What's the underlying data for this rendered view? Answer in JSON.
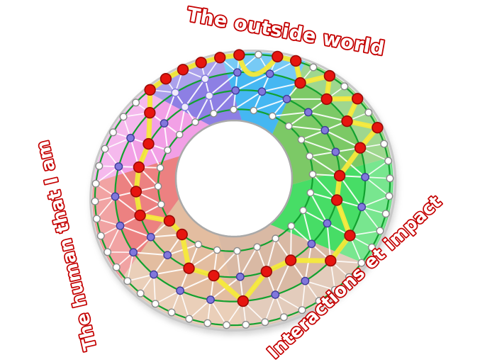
{
  "title_labels": {
    "top": {
      "text": "The outside world"
    },
    "left": {
      "text": "The human that I am"
    },
    "right": {
      "text": "Interactions et impact"
    }
  },
  "label_style": {
    "stroke": "#C40000",
    "fill": "#FFFFFF"
  },
  "wheel": {
    "sectors": [
      {
        "name": "bright-green",
        "from": 6,
        "to": 52,
        "color": "#47DD66",
        "band": "#82E795"
      },
      {
        "name": "tan-right",
        "from": 52,
        "to": 106,
        "color": "#D9B9A4",
        "band": "#EDD6C3"
      },
      {
        "name": "tan-left",
        "from": 106,
        "to": 160,
        "color": "#E3BDA0",
        "band": "#EFD8C0"
      },
      {
        "name": "red",
        "from": 160,
        "to": 203,
        "color": "#EC8181",
        "band": "#F3AFB6"
      },
      {
        "name": "pink",
        "from": 203,
        "to": 246,
        "color": "#F2A0E6",
        "band": "#F7C7F0"
      },
      {
        "name": "purple",
        "from": 246,
        "to": 278,
        "color": "#8D7FE4",
        "band": "#AC9FEF"
      },
      {
        "name": "blue",
        "from": 278,
        "to": 311,
        "color": "#45B7F2",
        "band": "#6FC8F5"
      },
      {
        "name": "dull-green",
        "from": 311,
        "to": 366,
        "color": "#7CC966",
        "band": "#9CD98C"
      }
    ],
    "rings": {
      "hole": 82,
      "C": 110,
      "B": 145,
      "A": 178,
      "O": 210,
      "edge": 214,
      "rim": 217
    },
    "counts": {
      "O": 48,
      "spokes": 24
    },
    "colors": {
      "ring_line": "#12A12F",
      "hole_fill": "#FFFFFF",
      "hole_stroke": "#A9A9A9",
      "rim": "#C9C9C9",
      "web_line": "#FFFFFF",
      "node_white": "#FFFFFF",
      "node_white_stroke": "#8A8A8A",
      "node_purple": "#8177DC",
      "node_purple_stroke": "#403C99",
      "node_pale": "#EFECFA",
      "node_red": "#E6150F",
      "node_red_stroke": "#9A0A06",
      "path": "#F6E93B"
    },
    "path_nodes": [
      [
        "A",
        240
      ],
      [
        "B",
        225
      ],
      [
        "B",
        210
      ],
      [
        "B",
        195
      ],
      [
        "B",
        180
      ],
      [
        "C",
        165
      ],
      [
        "C",
        150
      ],
      [
        "B",
        135
      ],
      [
        "B",
        120
      ],
      [
        "A",
        105
      ],
      [
        "B",
        90
      ],
      [
        "B",
        75
      ],
      [
        "A",
        60
      ],
      [
        "A",
        45
      ],
      [
        "B",
        30
      ],
      [
        "B",
        15
      ],
      [
        "A",
        0
      ],
      [
        "O",
        352.5
      ],
      [
        "A",
        345
      ],
      [
        "O",
        337.5
      ],
      [
        "A",
        330
      ],
      [
        "O",
        322.5
      ],
      [
        "A",
        315
      ],
      [
        "O",
        307.5
      ],
      [
        "O",
        300
      ],
      [
        "ARC",
        292.5
      ],
      [
        "O",
        285
      ],
      [
        "O",
        277.5
      ],
      [
        "O",
        270
      ],
      [
        "O",
        262.5
      ],
      [
        "O",
        255
      ],
      [
        "O",
        247.5
      ]
    ],
    "path_closed": true
  }
}
